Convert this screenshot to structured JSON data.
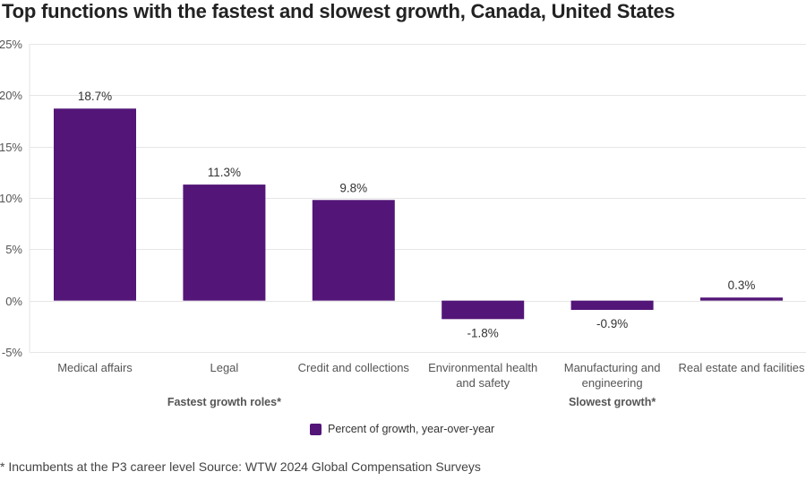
{
  "chart_data": {
    "type": "bar",
    "title": "Top functions with the fastest and slowest growth, Canada, United States",
    "categories": [
      "Medical affairs",
      "Legal",
      "Credit and collections",
      "Environmental health and safety",
      "Manufacturing and engineering",
      "Real estate and facilities"
    ],
    "category_lines": [
      [
        "Medical affairs"
      ],
      [
        "Legal"
      ],
      [
        "Credit and collections"
      ],
      [
        "Environmental health",
        "and safety"
      ],
      [
        "Manufacturing and",
        "engineering"
      ],
      [
        "Real estate and facilities"
      ]
    ],
    "series": [
      {
        "name": "Percent of growth, year-over-year",
        "values": [
          18.7,
          11.3,
          9.8,
          -1.8,
          -0.9,
          0.3
        ],
        "color": "#531678"
      }
    ],
    "value_labels": [
      "18.7%",
      "11.3%",
      "9.8%",
      "-1.8%",
      "-0.9%",
      "0.3%"
    ],
    "groups": [
      {
        "label": "Fastest growth roles*",
        "categories": [
          "Medical affairs",
          "Legal",
          "Credit and collections"
        ]
      },
      {
        "label": "Slowest growth*",
        "categories": [
          "Environmental health and safety",
          "Manufacturing and engineering",
          "Real estate and facilities"
        ]
      }
    ],
    "xlabel": "",
    "ylabel": "",
    "ylim": [
      -5,
      25
    ],
    "yticks": [
      25,
      20,
      15,
      10,
      5,
      0,
      -5
    ],
    "ytick_labels": [
      "25%",
      "20%",
      "15%",
      "10%",
      "5%",
      "0%",
      "-5%"
    ],
    "grid": true,
    "legend": "bottom-center"
  },
  "legend": {
    "label": "Percent of growth, year-over-year",
    "color": "#531678"
  },
  "footnote": "* Incumbents at the P3 career level Source: WTW 2024 Global Compensation Surveys"
}
